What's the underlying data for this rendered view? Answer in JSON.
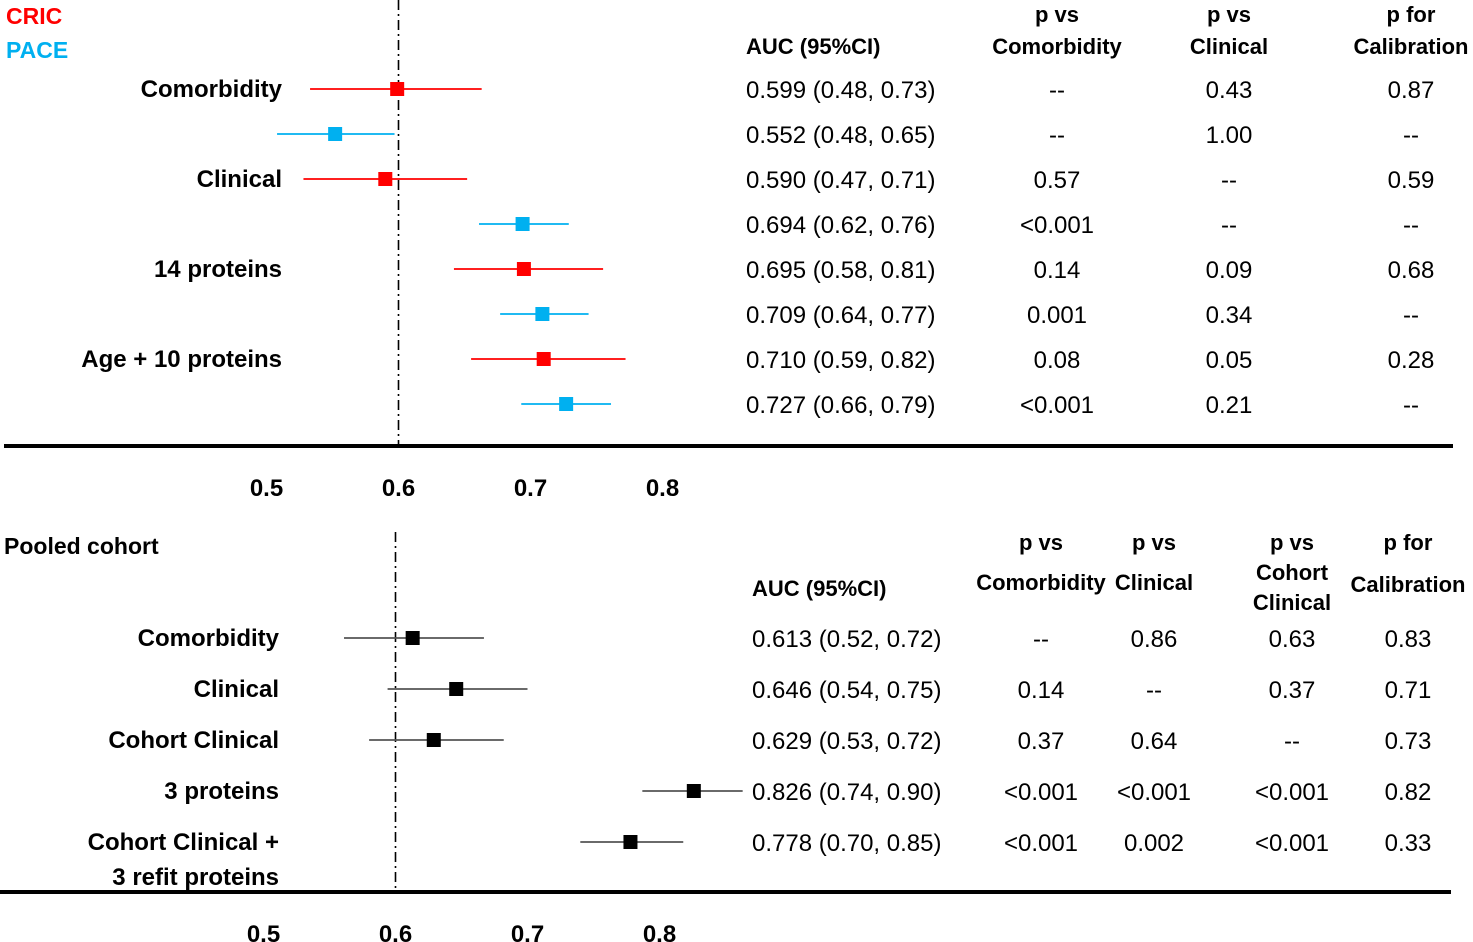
{
  "chart_data": [
    {
      "type": "forest",
      "legend": [
        {
          "name": "CRIC",
          "color": "#ff0000"
        },
        {
          "name": "PACE",
          "color": "#00b0f0"
        }
      ],
      "reference_line": 0.6,
      "xlim": [
        0.45,
        0.855
      ],
      "ticks": [
        {
          "value": 0.5,
          "label": "0.5"
        },
        {
          "value": 0.6,
          "label": "0.6"
        },
        {
          "value": 0.7,
          "label": "0.7"
        },
        {
          "value": 0.8,
          "label": "0.8"
        }
      ],
      "columns": [
        {
          "lines": [
            "AUC (95%CI)"
          ]
        },
        {
          "lines": [
            "p vs",
            "Comorbidity"
          ]
        },
        {
          "lines": [
            "p vs",
            "Clinical"
          ]
        },
        {
          "lines": [
            "p for",
            "Calibration"
          ]
        }
      ],
      "rows": [
        {
          "label": "Comorbidity",
          "series": "CRIC",
          "auc": 0.599,
          "ci_low": 0.533,
          "ci_high": 0.663,
          "auc_text": "0.599 (0.48, 0.73)",
          "p_values": [
            "--",
            "0.43",
            "0.87"
          ]
        },
        {
          "label": "",
          "series": "PACE",
          "auc": 0.552,
          "ci_low": 0.508,
          "ci_high": 0.597,
          "auc_text": "0.552 (0.48, 0.65)",
          "p_values": [
            "--",
            "1.00",
            "--"
          ]
        },
        {
          "label": "Clinical",
          "series": "CRIC",
          "auc": 0.59,
          "ci_low": 0.528,
          "ci_high": 0.652,
          "auc_text": "0.590 (0.47, 0.71)",
          "p_values": [
            "0.57",
            "--",
            "0.59"
          ]
        },
        {
          "label": "",
          "series": "PACE",
          "auc": 0.694,
          "ci_low": 0.661,
          "ci_high": 0.729,
          "auc_text": "0.694 (0.62, 0.76)",
          "p_values": [
            "<0.001",
            "--",
            "--"
          ]
        },
        {
          "label": "14 proteins",
          "series": "CRIC",
          "auc": 0.695,
          "ci_low": 0.642,
          "ci_high": 0.755,
          "auc_text": "0.695 (0.58, 0.81)",
          "p_values": [
            "0.14",
            "0.09",
            "0.68"
          ]
        },
        {
          "label": "",
          "series": "PACE",
          "auc": 0.709,
          "ci_low": 0.677,
          "ci_high": 0.744,
          "auc_text": "0.709 (0.64, 0.77)",
          "p_values": [
            "0.001",
            "0.34",
            "--"
          ]
        },
        {
          "label": "Age + 10 proteins",
          "series": "CRIC",
          "auc": 0.71,
          "ci_low": 0.655,
          "ci_high": 0.772,
          "auc_text": "0.710 (0.59, 0.82)",
          "p_values": [
            "0.08",
            "0.05",
            "0.28"
          ]
        },
        {
          "label": "",
          "series": "PACE",
          "auc": 0.727,
          "ci_low": 0.693,
          "ci_high": 0.761,
          "auc_text": "0.727 (0.66, 0.79)",
          "p_values": [
            "<0.001",
            "0.21",
            "--"
          ]
        }
      ]
    },
    {
      "type": "forest",
      "title": "Pooled cohort",
      "legend": [
        {
          "name": "Pooled",
          "color": "#000000"
        }
      ],
      "reference_line": 0.6,
      "xlim": [
        0.45,
        0.855
      ],
      "ticks": [
        {
          "value": 0.5,
          "label": "0.5"
        },
        {
          "value": 0.6,
          "label": "0.6"
        },
        {
          "value": 0.7,
          "label": "0.7"
        },
        {
          "value": 0.8,
          "label": "0.8"
        }
      ],
      "columns": [
        {
          "lines": [
            "AUC (95%CI)"
          ]
        },
        {
          "lines": [
            "p vs",
            "Comorbidity"
          ]
        },
        {
          "lines": [
            "p vs",
            "Clinical"
          ]
        },
        {
          "lines": [
            "p vs",
            "Cohort",
            "Clinical"
          ]
        },
        {
          "lines": [
            "p for",
            "Calibration"
          ]
        }
      ],
      "rows": [
        {
          "label_lines": [
            "Comorbidity"
          ],
          "series": "Pooled",
          "auc": 0.613,
          "ci_low": 0.561,
          "ci_high": 0.667,
          "auc_text": "0.613 (0.52, 0.72)",
          "p_values": [
            "--",
            "0.86",
            "0.63",
            "0.83"
          ]
        },
        {
          "label_lines": [
            "Clinical"
          ],
          "series": "Pooled",
          "auc": 0.646,
          "ci_low": 0.594,
          "ci_high": 0.7,
          "auc_text": "0.646 (0.54, 0.75)",
          "p_values": [
            "0.14",
            "--",
            "0.37",
            "0.71"
          ]
        },
        {
          "label_lines": [
            "Cohort Clinical"
          ],
          "series": "Pooled",
          "auc": 0.629,
          "ci_low": 0.58,
          "ci_high": 0.682,
          "auc_text": "0.629 (0.53, 0.72)",
          "p_values": [
            "0.37",
            "0.64",
            "--",
            "0.73"
          ]
        },
        {
          "label_lines": [
            "3 proteins"
          ],
          "series": "Pooled",
          "auc": 0.826,
          "ci_low": 0.787,
          "ci_high": 0.863,
          "auc_text": "0.826 (0.74, 0.90)",
          "p_values": [
            "<0.001",
            "<0.001",
            "<0.001",
            "0.82"
          ]
        },
        {
          "label_lines": [
            "Cohort Clinical +",
            "3 refit proteins"
          ],
          "series": "Pooled",
          "auc": 0.778,
          "ci_low": 0.74,
          "ci_high": 0.818,
          "auc_text": "0.778 (0.70, 0.85)",
          "p_values": [
            "<0.001",
            "0.002",
            "<0.001",
            "0.33"
          ]
        }
      ]
    }
  ]
}
